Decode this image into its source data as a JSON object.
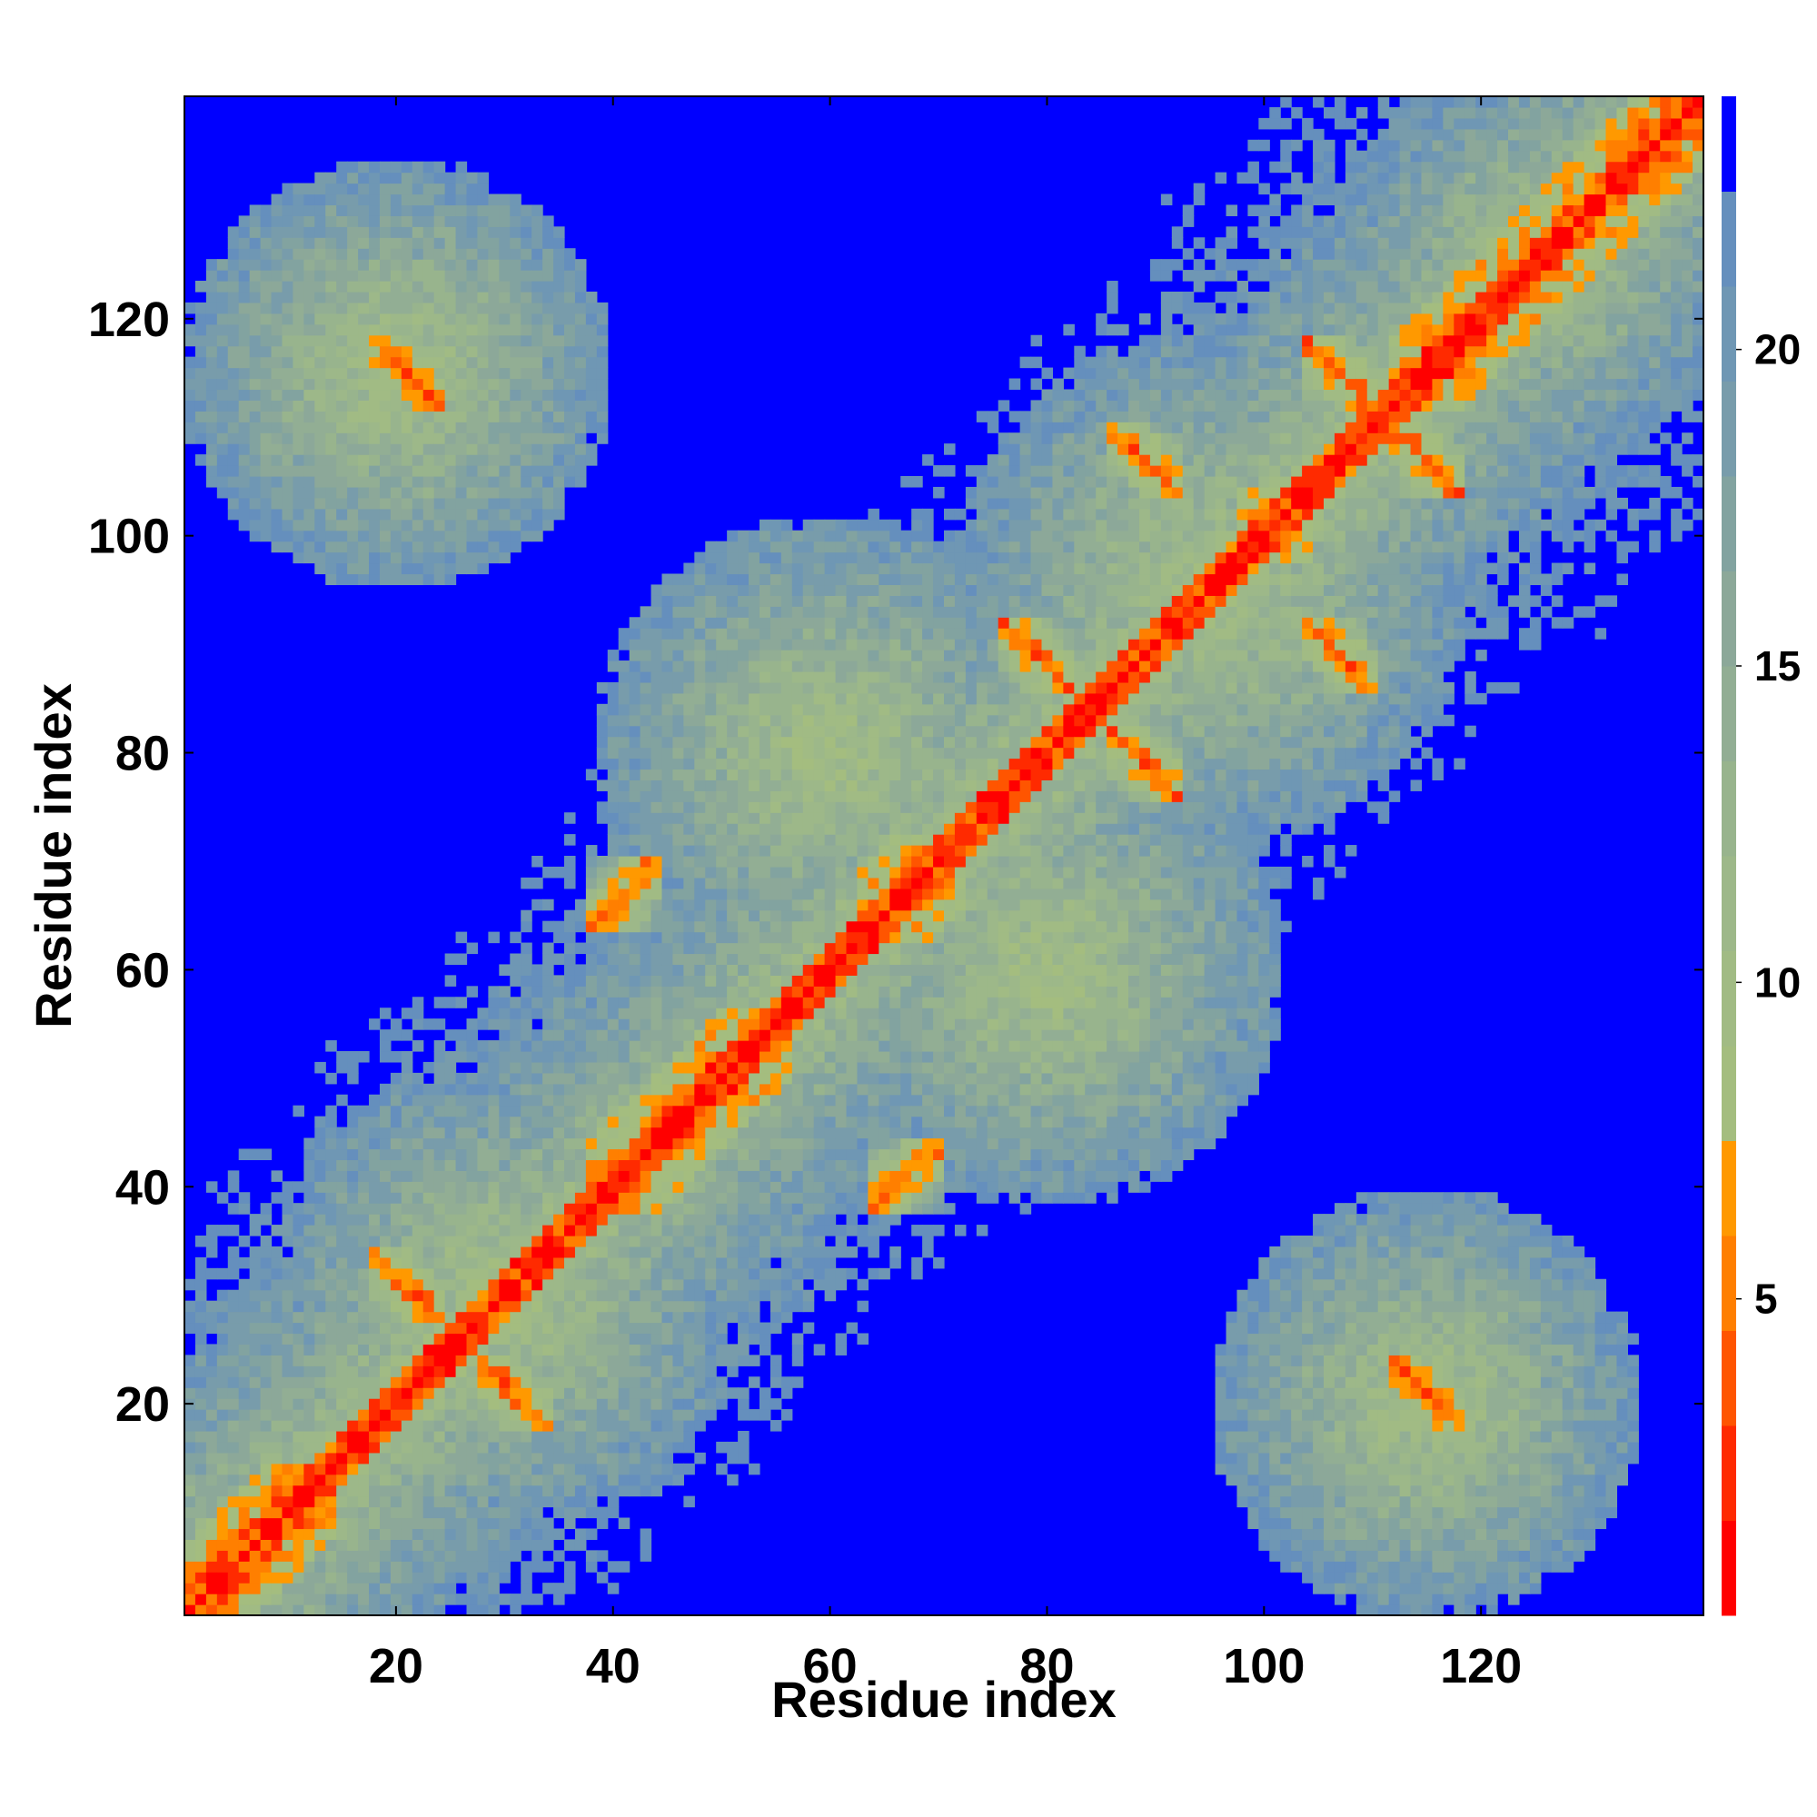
{
  "chart_data": {
    "type": "heatmap",
    "title": "",
    "xlabel": "Residue index",
    "ylabel": "Residue index",
    "n_residues": 140,
    "xlim": [
      1,
      140
    ],
    "ylim": [
      1,
      140
    ],
    "x_ticks": [
      20,
      40,
      60,
      80,
      100,
      120
    ],
    "y_ticks": [
      20,
      40,
      60,
      80,
      100,
      120
    ],
    "grid": false,
    "legend": "colorbar-right",
    "colorbar": {
      "ticks": [
        5,
        10,
        15,
        20
      ],
      "range": [
        0,
        24
      ],
      "bands": [
        {
          "upper": 1.5,
          "color": "#ff0000"
        },
        {
          "upper": 3.0,
          "color": "#ff2a00"
        },
        {
          "upper": 4.5,
          "color": "#ff5500"
        },
        {
          "upper": 6.0,
          "color": "#ff7f00"
        },
        {
          "upper": 7.5,
          "color": "#ff9900"
        },
        {
          "upper": 9.0,
          "color": "#a4bd7f"
        },
        {
          "upper": 10.5,
          "color": "#a1bb84"
        },
        {
          "upper": 12.0,
          "color": "#9db889"
        },
        {
          "upper": 13.5,
          "color": "#98b48d"
        },
        {
          "upper": 15.0,
          "color": "#92ae94"
        },
        {
          "upper": 16.5,
          "color": "#8ca899"
        },
        {
          "upper": 18.0,
          "color": "#82a3a0"
        },
        {
          "upper": 19.5,
          "color": "#789cab"
        },
        {
          "upper": 21.0,
          "color": "#6f97b4"
        },
        {
          "upper": 22.5,
          "color": "#658fbd"
        },
        {
          "upper": 24.0,
          "color": "#0000ff"
        }
      ]
    },
    "secondary_structure": {
      "helices": [
        [
          1,
          14
        ],
        [
          38,
          56
        ],
        [
          63,
          72
        ],
        [
          98,
          104
        ],
        [
          112,
          140
        ]
      ],
      "strands": [
        [
          18,
          24
        ],
        [
          28,
          34
        ],
        [
          76,
          82
        ],
        [
          86,
          92
        ],
        [
          104,
          110
        ],
        [
          112,
          118
        ]
      ]
    },
    "sheet_pairs": [
      {
        "a": [
          18,
          24
        ],
        "b": [
          28,
          34
        ],
        "type": "anti"
      },
      {
        "a": [
          76,
          82
        ],
        "b": [
          86,
          92
        ],
        "type": "anti"
      },
      {
        "a": [
          104,
          110
        ],
        "b": [
          112,
          118
        ],
        "type": "anti"
      },
      {
        "a": [
          18,
          24
        ],
        "b": [
          112,
          118
        ],
        "type": "anti"
      },
      {
        "a": [
          86,
          92
        ],
        "b": [
          104,
          110
        ],
        "type": "anti"
      },
      {
        "a": [
          38,
          44
        ],
        "b": [
          64,
          70
        ],
        "type": "parallel"
      }
    ],
    "domain_clusters": [
      {
        "center": [
          30,
          30
        ],
        "radius": 22
      },
      {
        "center": [
          95,
          95
        ],
        "radius": 24
      },
      {
        "center": [
          125,
          125
        ],
        "radius": 18
      },
      {
        "center": [
          20,
          115
        ],
        "radius": 20
      },
      {
        "center": [
          115,
          20
        ],
        "radius": 20
      },
      {
        "center": [
          60,
          80
        ],
        "radius": 22
      },
      {
        "center": [
          80,
          60
        ],
        "radius": 22
      }
    ]
  }
}
